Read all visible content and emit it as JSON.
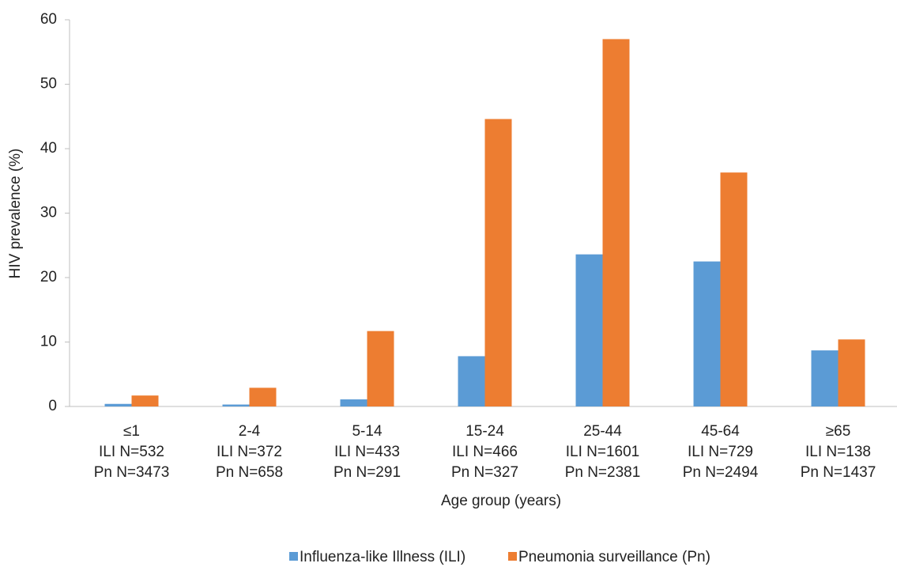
{
  "chart_data": {
    "type": "bar",
    "x_label": "Age group (years)",
    "y_label": "HIV prevalence (%)",
    "categories": [
      [
        "≤1",
        "ILI N=532",
        "Pn N=3473"
      ],
      [
        "2-4",
        "ILI N=372",
        "Pn N=658"
      ],
      [
        "5-14",
        "ILI N=433",
        "Pn N=291"
      ],
      [
        "15-24",
        "ILI N=466",
        "Pn N=327"
      ],
      [
        "25-44",
        "ILI N=1601",
        "Pn N=2381"
      ],
      [
        "45-64",
        "ILI N=729",
        "Pn N=2494"
      ],
      [
        "≥65",
        "ILI N=138",
        "Pn N=1437"
      ]
    ],
    "series": [
      {
        "name": "Influenza-like Illness (ILI)",
        "color": "#5b9bd5",
        "values": [
          0.4,
          0.3,
          1.1,
          7.8,
          23.6,
          22.5,
          8.7
        ]
      },
      {
        "name": "Pneumonia surveillance (Pn)",
        "color": "#ed7d31",
        "values": [
          1.7,
          2.9,
          11.7,
          44.6,
          57.0,
          36.3,
          10.4
        ]
      }
    ],
    "ylim": [
      0,
      60
    ],
    "yticks": [
      0,
      10,
      20,
      30,
      40,
      50,
      60
    ],
    "grid": false,
    "legend": "bottom"
  }
}
